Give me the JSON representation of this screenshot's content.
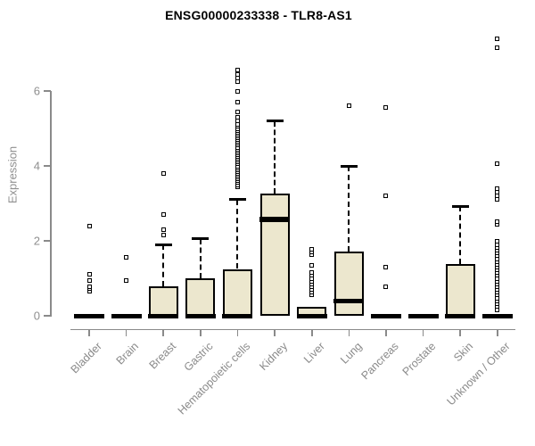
{
  "title": "ENSG00000233338 - TLR8-AS1",
  "colors": {
    "box_fill": "#ece7ce",
    "box_border": "#000000",
    "axis": "#8a8a8a",
    "tick_label": "#8f8f8f",
    "title": "#000000",
    "background": "#ffffff"
  },
  "chart_data": {
    "type": "boxplot",
    "title": "ENSG00000233338 - TLR8-AS1",
    "xlabel": "",
    "ylabel": "Expression",
    "ylim": [
      0,
      7.5
    ],
    "yticks": [
      0,
      2,
      4,
      6
    ],
    "grid": false,
    "legend": false,
    "marker": "open-square",
    "categories": [
      "Bladder",
      "Brain",
      "Breast",
      "Gastric",
      "Hematopoietic cells",
      "Kidney",
      "Liver",
      "Lung",
      "Pancreas",
      "Prostate",
      "Skin",
      "Unknown / Other"
    ],
    "series": [
      {
        "name": "Bladder",
        "whisker_low": 0,
        "q1": 0,
        "median": 0,
        "q3": 0,
        "whisker_high": 0,
        "outliers": [
          0.65,
          0.72,
          0.78,
          0.95,
          1.1,
          2.4
        ]
      },
      {
        "name": "Brain",
        "whisker_low": 0,
        "q1": 0,
        "median": 0,
        "q3": 0,
        "whisker_high": 0,
        "outliers": [
          0.95,
          1.55
        ]
      },
      {
        "name": "Breast",
        "whisker_low": 0,
        "q1": 0,
        "median": 0,
        "q3": 0.78,
        "whisker_high": 1.9,
        "outliers": [
          2.15,
          2.3,
          2.7,
          3.8
        ]
      },
      {
        "name": "Gastric",
        "whisker_low": 0,
        "q1": 0,
        "median": 0,
        "q3": 1.0,
        "whisker_high": 2.05,
        "outliers": []
      },
      {
        "name": "Hematopoietic cells",
        "whisker_low": 0,
        "q1": 0,
        "median": 0,
        "q3": 1.25,
        "whisker_high": 3.1,
        "outliers": [
          3.45,
          3.5,
          3.55,
          3.6,
          3.65,
          3.7,
          3.75,
          3.8,
          3.85,
          3.9,
          3.95,
          4.0,
          4.05,
          4.1,
          4.15,
          4.2,
          4.25,
          4.3,
          4.35,
          4.4,
          4.45,
          4.5,
          4.55,
          4.6,
          4.65,
          4.7,
          4.75,
          4.8,
          4.85,
          4.9,
          4.95,
          5.0,
          5.05,
          5.1,
          5.2,
          5.3,
          5.45,
          5.7,
          6.0,
          6.25,
          6.35,
          6.45,
          6.55
        ]
      },
      {
        "name": "Kidney",
        "whisker_low": 0,
        "q1": 0,
        "median": 2.58,
        "q3": 3.27,
        "whisker_high": 5.2,
        "outliers": []
      },
      {
        "name": "Liver",
        "whisker_low": 0,
        "q1": 0,
        "median": 0,
        "q3": 0.25,
        "whisker_high": 0.25,
        "outliers": [
          0.55,
          0.62,
          0.7,
          0.78,
          0.85,
          0.92,
          1.0,
          1.08,
          1.15,
          1.35,
          1.62,
          1.7,
          1.78
        ]
      },
      {
        "name": "Lung",
        "whisker_low": 0,
        "q1": 0,
        "median": 0.4,
        "q3": 1.72,
        "whisker_high": 4.0,
        "outliers": [
          5.6
        ]
      },
      {
        "name": "Pancreas",
        "whisker_low": 0,
        "q1": 0,
        "median": 0,
        "q3": 0,
        "whisker_high": 0,
        "outliers": [
          0.78,
          1.3,
          3.2,
          5.55
        ]
      },
      {
        "name": "Prostate",
        "whisker_low": 0,
        "q1": 0,
        "median": 0,
        "q3": 0,
        "whisker_high": 0,
        "outliers": []
      },
      {
        "name": "Skin",
        "whisker_low": 0,
        "q1": 0,
        "median": 0,
        "q3": 1.38,
        "whisker_high": 2.92,
        "outliers": []
      },
      {
        "name": "Unknown / Other",
        "whisker_low": 0,
        "q1": 0,
        "median": 0,
        "q3": 0,
        "whisker_high": 0,
        "outliers": [
          0.15,
          0.25,
          0.32,
          0.4,
          0.47,
          0.55,
          0.62,
          0.7,
          0.78,
          0.85,
          0.92,
          1.0,
          1.08,
          1.15,
          1.22,
          1.3,
          1.38,
          1.45,
          1.52,
          1.6,
          1.68,
          1.75,
          1.82,
          1.9,
          1.98,
          2.45,
          2.52,
          3.1,
          3.2,
          3.3,
          3.4,
          4.05,
          7.15,
          7.4
        ]
      }
    ]
  }
}
